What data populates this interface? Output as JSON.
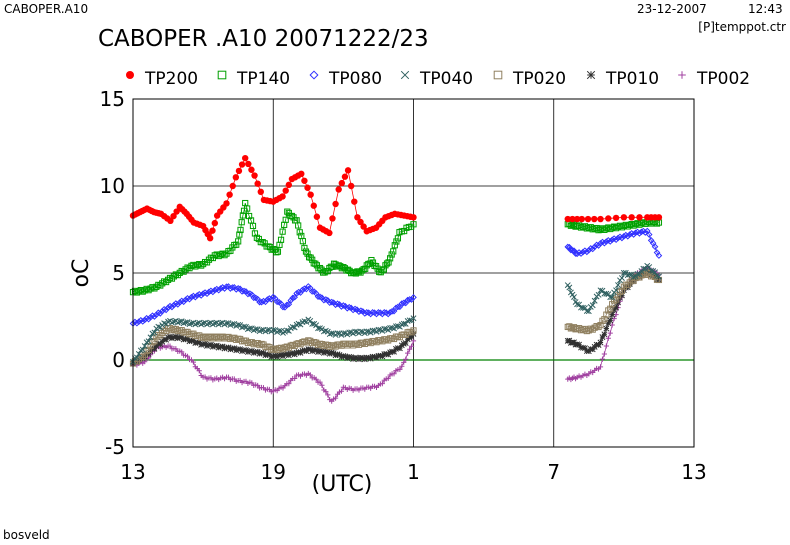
{
  "header": {
    "filename": "CABOPER.A10",
    "date": "23-12-2007",
    "time": "12:43",
    "config": "[P]temppot.ctr"
  },
  "footer": {
    "label": "bosveld"
  },
  "chart_data": {
    "type": "line",
    "title": "CABOPER .A10 20071222/23",
    "xlabel": "(UTC)",
    "ylabel": "oC",
    "x_tick_labels": [
      "13",
      "19",
      "1",
      "7",
      "13"
    ],
    "y_tick_labels": [
      "15",
      "10",
      "5",
      "0",
      "-5"
    ],
    "ylim": [
      -5,
      15
    ],
    "xlim_hours": [
      0,
      24
    ],
    "grid": true,
    "legend_position": "top",
    "reference_line": {
      "y": 0,
      "color": "#008000"
    },
    "series": [
      {
        "name": "TP200",
        "color": "#ff0000",
        "marker": "dot",
        "segments": [
          [
            [
              0.0,
              8.3
            ],
            [
              0.3,
              8.5
            ],
            [
              0.6,
              8.7
            ],
            [
              0.9,
              8.5
            ],
            [
              1.2,
              8.4
            ],
            [
              1.6,
              8.0
            ],
            [
              2.0,
              8.8
            ],
            [
              2.3,
              8.4
            ],
            [
              2.6,
              7.9
            ],
            [
              3.0,
              7.7
            ],
            [
              3.3,
              7.0
            ],
            [
              3.6,
              8.3
            ],
            [
              4.0,
              9.0
            ],
            [
              4.4,
              10.5
            ],
            [
              4.8,
              11.6
            ],
            [
              5.2,
              10.6
            ],
            [
              5.6,
              9.2
            ],
            [
              6.0,
              9.1
            ],
            [
              6.4,
              9.4
            ],
            [
              6.8,
              10.4
            ],
            [
              7.2,
              10.7
            ],
            [
              7.6,
              9.5
            ],
            [
              8.0,
              7.6
            ],
            [
              8.4,
              7.3
            ],
            [
              8.8,
              9.8
            ],
            [
              9.2,
              10.9
            ],
            [
              9.6,
              8.2
            ],
            [
              10.0,
              7.4
            ],
            [
              10.4,
              7.6
            ],
            [
              10.8,
              8.2
            ],
            [
              11.2,
              8.4
            ],
            [
              11.6,
              8.3
            ],
            [
              12.0,
              8.2
            ]
          ],
          [
            [
              18.6,
              8.1
            ],
            [
              19.2,
              8.1
            ],
            [
              20.0,
              8.1
            ],
            [
              21.0,
              8.2
            ],
            [
              22.0,
              8.2
            ],
            [
              22.5,
              8.2
            ]
          ]
        ]
      },
      {
        "name": "TP140",
        "color": "#00a000",
        "marker": "square",
        "segments": [
          [
            [
              0.0,
              3.9
            ],
            [
              0.5,
              4.0
            ],
            [
              1.0,
              4.2
            ],
            [
              1.5,
              4.6
            ],
            [
              2.0,
              5.0
            ],
            [
              2.5,
              5.4
            ],
            [
              3.0,
              5.5
            ],
            [
              3.5,
              6.0
            ],
            [
              4.0,
              6.1
            ],
            [
              4.5,
              6.8
            ],
            [
              4.8,
              9.0
            ],
            [
              5.3,
              7.0
            ],
            [
              5.8,
              6.5
            ],
            [
              6.2,
              6.2
            ],
            [
              6.6,
              8.5
            ],
            [
              7.0,
              8.0
            ],
            [
              7.4,
              6.2
            ],
            [
              7.8,
              5.5
            ],
            [
              8.2,
              5.0
            ],
            [
              8.6,
              5.5
            ],
            [
              9.0,
              5.3
            ],
            [
              9.4,
              5.0
            ],
            [
              9.8,
              5.1
            ],
            [
              10.2,
              5.7
            ],
            [
              10.6,
              5.0
            ],
            [
              11.0,
              5.8
            ],
            [
              11.4,
              7.3
            ],
            [
              12.0,
              7.8
            ]
          ],
          [
            [
              18.6,
              7.8
            ],
            [
              19.0,
              7.7
            ],
            [
              19.5,
              7.6
            ],
            [
              20.0,
              7.5
            ],
            [
              20.5,
              7.6
            ],
            [
              21.0,
              7.7
            ],
            [
              21.5,
              7.8
            ],
            [
              22.0,
              7.9
            ],
            [
              22.5,
              7.9
            ]
          ]
        ]
      },
      {
        "name": "TP080",
        "color": "#3030ff",
        "marker": "diamond",
        "segments": [
          [
            [
              0.0,
              2.1
            ],
            [
              0.5,
              2.3
            ],
            [
              1.0,
              2.6
            ],
            [
              1.5,
              3.0
            ],
            [
              2.0,
              3.3
            ],
            [
              2.5,
              3.6
            ],
            [
              3.0,
              3.8
            ],
            [
              3.5,
              4.0
            ],
            [
              4.0,
              4.2
            ],
            [
              4.5,
              4.1
            ],
            [
              5.0,
              3.8
            ],
            [
              5.5,
              3.3
            ],
            [
              6.0,
              3.6
            ],
            [
              6.5,
              3.0
            ],
            [
              7.0,
              3.8
            ],
            [
              7.5,
              4.2
            ],
            [
              8.0,
              3.6
            ],
            [
              8.5,
              3.3
            ],
            [
              9.0,
              3.1
            ],
            [
              9.5,
              2.9
            ],
            [
              10.0,
              2.7
            ],
            [
              10.5,
              2.7
            ],
            [
              11.0,
              2.7
            ],
            [
              11.5,
              3.2
            ],
            [
              12.0,
              3.6
            ]
          ],
          [
            [
              18.6,
              6.5
            ],
            [
              19.0,
              6.1
            ],
            [
              19.5,
              6.3
            ],
            [
              20.0,
              6.7
            ],
            [
              20.5,
              6.9
            ],
            [
              21.0,
              7.1
            ],
            [
              21.5,
              7.3
            ],
            [
              22.0,
              7.4
            ],
            [
              22.5,
              6.0
            ]
          ]
        ]
      },
      {
        "name": "TP040",
        "color": "#306060",
        "marker": "x",
        "segments": [
          [
            [
              0.0,
              -0.1
            ],
            [
              0.5,
              0.8
            ],
            [
              1.0,
              1.8
            ],
            [
              1.5,
              2.2
            ],
            [
              2.0,
              2.2
            ],
            [
              2.5,
              2.1
            ],
            [
              3.0,
              2.1
            ],
            [
              3.5,
              2.1
            ],
            [
              4.0,
              2.1
            ],
            [
              4.5,
              2.0
            ],
            [
              5.0,
              1.8
            ],
            [
              5.5,
              1.7
            ],
            [
              6.0,
              1.7
            ],
            [
              6.5,
              1.6
            ],
            [
              7.0,
              2.0
            ],
            [
              7.5,
              2.3
            ],
            [
              8.0,
              1.8
            ],
            [
              8.5,
              1.5
            ],
            [
              9.0,
              1.5
            ],
            [
              9.5,
              1.6
            ],
            [
              10.0,
              1.6
            ],
            [
              10.5,
              1.7
            ],
            [
              11.0,
              1.8
            ],
            [
              11.5,
              2.0
            ],
            [
              12.0,
              2.4
            ]
          ],
          [
            [
              18.6,
              4.3
            ],
            [
              19.0,
              3.2
            ],
            [
              19.5,
              2.8
            ],
            [
              20.0,
              4.0
            ],
            [
              20.5,
              3.6
            ],
            [
              21.0,
              5.0
            ],
            [
              21.5,
              4.8
            ],
            [
              22.0,
              5.4
            ],
            [
              22.5,
              4.8
            ]
          ]
        ]
      },
      {
        "name": "TP020",
        "color": "#908060",
        "marker": "square",
        "segments": [
          [
            [
              0.0,
              -0.2
            ],
            [
              0.5,
              0.3
            ],
            [
              1.0,
              1.3
            ],
            [
              1.5,
              1.8
            ],
            [
              2.0,
              1.7
            ],
            [
              2.5,
              1.5
            ],
            [
              3.0,
              1.3
            ],
            [
              3.5,
              1.3
            ],
            [
              4.0,
              1.3
            ],
            [
              4.5,
              1.2
            ],
            [
              5.0,
              1.0
            ],
            [
              5.5,
              0.9
            ],
            [
              6.0,
              0.6
            ],
            [
              6.5,
              0.7
            ],
            [
              7.0,
              0.9
            ],
            [
              7.5,
              1.1
            ],
            [
              8.0,
              0.9
            ],
            [
              8.5,
              0.8
            ],
            [
              9.0,
              0.9
            ],
            [
              9.5,
              0.9
            ],
            [
              10.0,
              1.0
            ],
            [
              10.5,
              1.1
            ],
            [
              11.0,
              1.2
            ],
            [
              11.5,
              1.4
            ],
            [
              12.0,
              1.7
            ]
          ],
          [
            [
              18.6,
              1.9
            ],
            [
              19.0,
              1.8
            ],
            [
              19.5,
              1.7
            ],
            [
              20.0,
              2.0
            ],
            [
              20.5,
              3.2
            ],
            [
              21.0,
              4.2
            ],
            [
              21.5,
              4.7
            ],
            [
              22.0,
              5.0
            ],
            [
              22.5,
              4.6
            ]
          ]
        ]
      },
      {
        "name": "TP010",
        "color": "#303030",
        "marker": "asterisk",
        "segments": [
          [
            [
              0.0,
              -0.2
            ],
            [
              0.5,
              0.2
            ],
            [
              1.0,
              0.8
            ],
            [
              1.5,
              1.3
            ],
            [
              2.0,
              1.3
            ],
            [
              2.5,
              1.1
            ],
            [
              3.0,
              0.9
            ],
            [
              3.5,
              0.8
            ],
            [
              4.0,
              0.7
            ],
            [
              4.5,
              0.6
            ],
            [
              5.0,
              0.5
            ],
            [
              5.5,
              0.4
            ],
            [
              6.0,
              0.2
            ],
            [
              6.5,
              0.3
            ],
            [
              7.0,
              0.4
            ],
            [
              7.5,
              0.6
            ],
            [
              8.0,
              0.5
            ],
            [
              8.5,
              0.4
            ],
            [
              9.0,
              0.2
            ],
            [
              9.5,
              0.1
            ],
            [
              10.0,
              0.1
            ],
            [
              10.5,
              0.2
            ],
            [
              11.0,
              0.4
            ],
            [
              11.5,
              0.8
            ],
            [
              12.0,
              1.5
            ]
          ],
          [
            [
              18.6,
              1.1
            ],
            [
              19.0,
              0.9
            ],
            [
              19.5,
              0.5
            ],
            [
              20.0,
              1.0
            ],
            [
              20.5,
              2.6
            ],
            [
              21.0,
              4.0
            ],
            [
              21.5,
              4.7
            ],
            [
              22.0,
              5.1
            ],
            [
              22.5,
              4.6
            ]
          ]
        ]
      },
      {
        "name": "TP002",
        "color": "#a040a0",
        "marker": "plus",
        "segments": [
          [
            [
              0.0,
              -0.3
            ],
            [
              0.5,
              -0.1
            ],
            [
              1.0,
              0.7
            ],
            [
              1.5,
              0.8
            ],
            [
              2.0,
              0.5
            ],
            [
              2.5,
              0.0
            ],
            [
              3.0,
              -1.0
            ],
            [
              3.5,
              -1.1
            ],
            [
              4.0,
              -1.0
            ],
            [
              4.5,
              -1.2
            ],
            [
              5.0,
              -1.3
            ],
            [
              5.5,
              -1.6
            ],
            [
              6.0,
              -1.8
            ],
            [
              6.5,
              -1.5
            ],
            [
              7.0,
              -0.9
            ],
            [
              7.5,
              -0.8
            ],
            [
              8.0,
              -1.3
            ],
            [
              8.5,
              -2.4
            ],
            [
              9.0,
              -1.6
            ],
            [
              9.5,
              -1.7
            ],
            [
              10.0,
              -1.6
            ],
            [
              10.5,
              -1.5
            ],
            [
              11.0,
              -0.9
            ],
            [
              11.5,
              -0.4
            ],
            [
              12.0,
              1.1
            ]
          ],
          [
            [
              18.6,
              -1.1
            ],
            [
              19.0,
              -1.0
            ],
            [
              19.5,
              -0.8
            ],
            [
              20.0,
              -0.4
            ],
            [
              20.5,
              2.0
            ],
            [
              21.0,
              4.0
            ],
            [
              21.5,
              4.9
            ],
            [
              22.0,
              5.3
            ],
            [
              22.5,
              4.9
            ]
          ]
        ]
      }
    ]
  }
}
